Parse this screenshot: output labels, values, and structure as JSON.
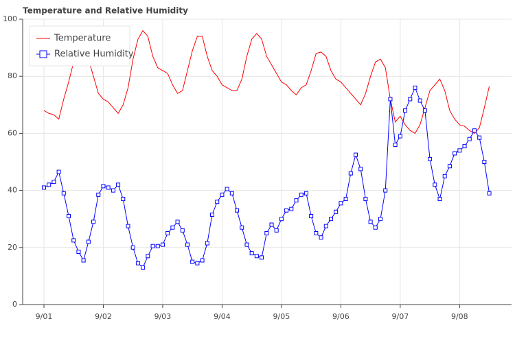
{
  "chart_data": {
    "type": "line",
    "title": "Temperature and Relative Humidity",
    "x": [
      0,
      2,
      4,
      6,
      8,
      10,
      12,
      14,
      16,
      18,
      20,
      22,
      24,
      26,
      28,
      30,
      32,
      34,
      36,
      38,
      40,
      42,
      44,
      46,
      48,
      50,
      52,
      54,
      56,
      58,
      60,
      62,
      64,
      66,
      68,
      70,
      72,
      74,
      76,
      78,
      80,
      82,
      84,
      86,
      88,
      90,
      92,
      94,
      96,
      98,
      100,
      102,
      104,
      106,
      108,
      110,
      112,
      114,
      116,
      118,
      120,
      122,
      124,
      126,
      128,
      130,
      132,
      134,
      136,
      138,
      140,
      142,
      144,
      146,
      148,
      150,
      152,
      154,
      156,
      158,
      160,
      162,
      164,
      166,
      168,
      170,
      172,
      174,
      176,
      178,
      180
    ],
    "series": [
      {
        "name": "Temperature",
        "color": "#ff0000",
        "marker": "none",
        "values": [
          68,
          67,
          66.5,
          65,
          72,
          78,
          85,
          90,
          91,
          86,
          80,
          74,
          72,
          71,
          69,
          67,
          70,
          76,
          86,
          93,
          96,
          94,
          87,
          83,
          82,
          81,
          77,
          74,
          75,
          82,
          89,
          94,
          94,
          87,
          82,
          80,
          77,
          76,
          75,
          75,
          79,
          87,
          93,
          95,
          93,
          87,
          84,
          81,
          78,
          77,
          75,
          73.5,
          76,
          77,
          82,
          88,
          88.5,
          87,
          82,
          79,
          78,
          76,
          74,
          72,
          70,
          74,
          80,
          85,
          86,
          83,
          72,
          64,
          66,
          63,
          61,
          60,
          63,
          69,
          75,
          77,
          79,
          75,
          68,
          65,
          63,
          62.5,
          61,
          60,
          62,
          69,
          76.5
        ]
      },
      {
        "name": "Relative Humidity",
        "color": "#0000ff",
        "marker": "square",
        "values": [
          41,
          42,
          43,
          46.5,
          39,
          31,
          22.5,
          18.5,
          15.5,
          22,
          29,
          38.5,
          41.5,
          41,
          40,
          42,
          37,
          27.5,
          20,
          14.5,
          13,
          17,
          20.5,
          20.5,
          21,
          25,
          27,
          29,
          26,
          21,
          15,
          14.5,
          15.5,
          21.5,
          31.5,
          36,
          38.5,
          40.5,
          39,
          33,
          27,
          21,
          18,
          17,
          16.5,
          25,
          28,
          26,
          30,
          33,
          33.5,
          36.5,
          38.5,
          39,
          31,
          25,
          23.5,
          27.5,
          30,
          32.5,
          35.5,
          37,
          46,
          52.5,
          47.5,
          37,
          29,
          27,
          30,
          40,
          72,
          56,
          59,
          68,
          72,
          76,
          71.5,
          68,
          51,
          42,
          37,
          45,
          48.5,
          53,
          54,
          55.5,
          58,
          61,
          58.5,
          50,
          39
        ]
      }
    ],
    "xlim": [
      -8.6,
      189
    ],
    "xticks": [
      {
        "value": 0,
        "label": "9/01"
      },
      {
        "value": 24,
        "label": "9/02"
      },
      {
        "value": 48,
        "label": "9/03"
      },
      {
        "value": 72,
        "label": "9/04"
      },
      {
        "value": 96,
        "label": "9/05"
      },
      {
        "value": 120,
        "label": "9/06"
      },
      {
        "value": 144,
        "label": "9/07"
      },
      {
        "value": 168,
        "label": "9/08"
      }
    ],
    "ylim": [
      0,
      100
    ],
    "yticks": [
      0,
      20,
      40,
      60,
      80,
      100
    ],
    "grid": true,
    "legend": "top-left"
  }
}
